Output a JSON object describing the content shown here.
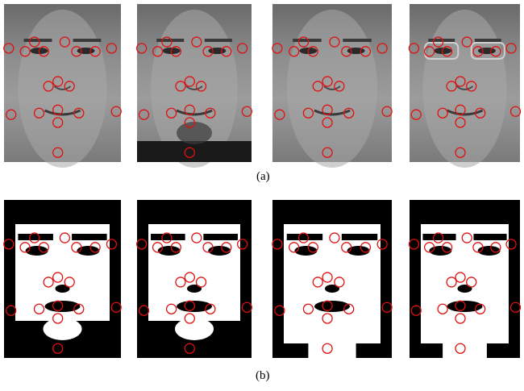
{
  "figure": {
    "captions": {
      "top": "(a)",
      "bottom": "(b)"
    },
    "landmark_color": "#e01010",
    "row_a": {
      "kind": "grayscale face photographs with facial landmark circles",
      "count": 4
    },
    "row_b": {
      "kind": "binarized face images with facial landmark circles",
      "count": 4
    }
  }
}
